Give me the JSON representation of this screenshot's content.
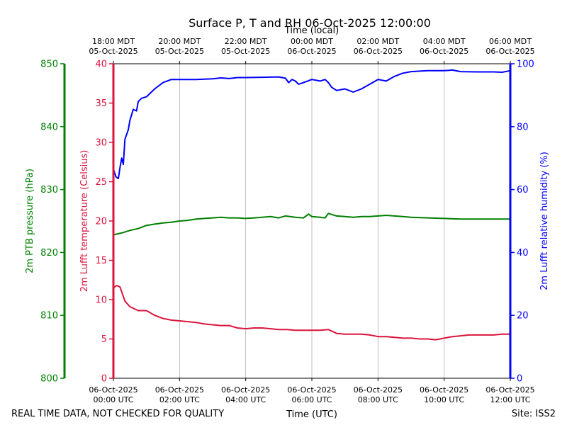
{
  "chart_data": {
    "type": "line",
    "title": "Surface P, T and RH 06-Oct-2025 12:00:00",
    "top_axis_title": "Time (local)",
    "xlabel": "Time (UTC)",
    "footer_left": "REAL TIME DATA, NOT CHECKED FOR QUALITY",
    "footer_right": "Site: ISS2",
    "x_range_hours": [
      0,
      12
    ],
    "x_ticks_utc": [
      {
        "h": 0,
        "l1": "06-Oct-2025",
        "l2": "00:00 UTC"
      },
      {
        "h": 2,
        "l1": "06-Oct-2025",
        "l2": "02:00 UTC"
      },
      {
        "h": 4,
        "l1": "06-Oct-2025",
        "l2": "04:00 UTC"
      },
      {
        "h": 6,
        "l1": "06-Oct-2025",
        "l2": "06:00 UTC"
      },
      {
        "h": 8,
        "l1": "06-Oct-2025",
        "l2": "08:00 UTC"
      },
      {
        "h": 10,
        "l1": "06-Oct-2025",
        "l2": "10:00 UTC"
      },
      {
        "h": 12,
        "l1": "06-Oct-2025",
        "l2": "12:00 UTC"
      }
    ],
    "x_ticks_local": [
      {
        "h": 0,
        "l1": "18:00 MDT",
        "l2": "05-Oct-2025"
      },
      {
        "h": 2,
        "l1": "20:00 MDT",
        "l2": "05-Oct-2025"
      },
      {
        "h": 4,
        "l1": "22:00 MDT",
        "l2": "05-Oct-2025"
      },
      {
        "h": 6,
        "l1": "00:00 MDT",
        "l2": "06-Oct-2025"
      },
      {
        "h": 8,
        "l1": "02:00 MDT",
        "l2": "06-Oct-2025"
      },
      {
        "h": 10,
        "l1": "04:00 MDT",
        "l2": "06-Oct-2025"
      },
      {
        "h": 12,
        "l1": "06:00 MDT",
        "l2": "06-Oct-2025"
      }
    ],
    "axes": {
      "pressure": {
        "label": "2m PTB pressure (hPa)",
        "ylim": [
          800,
          850
        ],
        "ticks": [
          800,
          810,
          820,
          830,
          840,
          850
        ],
        "color": "#008000"
      },
      "temperature": {
        "label": "2m Lufft temperature (Celsius)",
        "ylim": [
          0,
          40
        ],
        "ticks": [
          0,
          5,
          10,
          15,
          20,
          25,
          30,
          35,
          40
        ],
        "color": "#dc143c"
      },
      "humidity": {
        "label": "2m Lufft relative humidity (%)",
        "ylim": [
          0,
          100
        ],
        "ticks": [
          0,
          20,
          40,
          60,
          80,
          100
        ],
        "color": "#0000ff"
      }
    },
    "series": [
      {
        "name": "2m PTB pressure (hPa)",
        "axis": "pressure",
        "color": "#008000",
        "points": [
          [
            0,
            822.8
          ],
          [
            0.25,
            823.1
          ],
          [
            0.5,
            823.5
          ],
          [
            0.75,
            823.8
          ],
          [
            1,
            824.3
          ],
          [
            1.25,
            824.5
          ],
          [
            1.5,
            824.7
          ],
          [
            1.75,
            824.8
          ],
          [
            2,
            825.0
          ],
          [
            2.25,
            825.1
          ],
          [
            2.5,
            825.3
          ],
          [
            2.75,
            825.4
          ],
          [
            3,
            825.5
          ],
          [
            3.25,
            825.6
          ],
          [
            3.5,
            825.5
          ],
          [
            3.75,
            825.5
          ],
          [
            4,
            825.4
          ],
          [
            4.25,
            825.5
          ],
          [
            4.5,
            825.6
          ],
          [
            4.75,
            825.7
          ],
          [
            5,
            825.5
          ],
          [
            5.2,
            825.8
          ],
          [
            5.5,
            825.6
          ],
          [
            5.75,
            825.5
          ],
          [
            5.9,
            826.1
          ],
          [
            6,
            825.7
          ],
          [
            6.25,
            825.6
          ],
          [
            6.4,
            825.5
          ],
          [
            6.5,
            826.2
          ],
          [
            6.75,
            825.8
          ],
          [
            7,
            825.7
          ],
          [
            7.25,
            825.6
          ],
          [
            7.5,
            825.7
          ],
          [
            7.75,
            825.7
          ],
          [
            8,
            825.8
          ],
          [
            8.25,
            825.9
          ],
          [
            8.5,
            825.8
          ],
          [
            8.75,
            825.7
          ],
          [
            9,
            825.6
          ],
          [
            9.5,
            825.5
          ],
          [
            10,
            825.4
          ],
          [
            10.5,
            825.3
          ],
          [
            11,
            825.3
          ],
          [
            11.5,
            825.3
          ],
          [
            12,
            825.3
          ]
        ]
      },
      {
        "name": "2m Lufft temperature (Celsius)",
        "axis": "temperature",
        "color": "#dc143c",
        "points": [
          [
            0,
            11.5
          ],
          [
            0.1,
            11.8
          ],
          [
            0.2,
            11.6
          ],
          [
            0.25,
            11.0
          ],
          [
            0.35,
            9.8
          ],
          [
            0.5,
            9.1
          ],
          [
            0.75,
            8.6
          ],
          [
            1,
            8.6
          ],
          [
            1.25,
            8.0
          ],
          [
            1.5,
            7.6
          ],
          [
            1.75,
            7.4
          ],
          [
            2,
            7.3
          ],
          [
            2.25,
            7.2
          ],
          [
            2.5,
            7.1
          ],
          [
            2.75,
            6.9
          ],
          [
            3,
            6.8
          ],
          [
            3.25,
            6.7
          ],
          [
            3.5,
            6.7
          ],
          [
            3.75,
            6.4
          ],
          [
            4,
            6.3
          ],
          [
            4.25,
            6.4
          ],
          [
            4.5,
            6.4
          ],
          [
            4.75,
            6.3
          ],
          [
            5,
            6.2
          ],
          [
            5.25,
            6.2
          ],
          [
            5.5,
            6.1
          ],
          [
            5.75,
            6.1
          ],
          [
            6,
            6.1
          ],
          [
            6.25,
            6.1
          ],
          [
            6.5,
            6.2
          ],
          [
            6.75,
            5.7
          ],
          [
            7,
            5.6
          ],
          [
            7.25,
            5.6
          ],
          [
            7.5,
            5.6
          ],
          [
            7.75,
            5.5
          ],
          [
            8,
            5.3
          ],
          [
            8.25,
            5.3
          ],
          [
            8.5,
            5.2
          ],
          [
            8.75,
            5.1
          ],
          [
            9,
            5.1
          ],
          [
            9.25,
            5.0
          ],
          [
            9.5,
            5.0
          ],
          [
            9.75,
            4.9
          ],
          [
            10,
            5.1
          ],
          [
            10.25,
            5.3
          ],
          [
            10.5,
            5.4
          ],
          [
            10.75,
            5.5
          ],
          [
            11,
            5.5
          ],
          [
            11.25,
            5.5
          ],
          [
            11.5,
            5.5
          ],
          [
            11.75,
            5.6
          ],
          [
            12,
            5.6
          ]
        ]
      },
      {
        "name": "2m Lufft relative humidity (%)",
        "axis": "humidity",
        "color": "#0000ff",
        "points": [
          [
            0,
            66.5
          ],
          [
            0.08,
            64.0
          ],
          [
            0.15,
            63.5
          ],
          [
            0.2,
            67.0
          ],
          [
            0.25,
            70.0
          ],
          [
            0.3,
            68.0
          ],
          [
            0.35,
            76.0
          ],
          [
            0.45,
            79.0
          ],
          [
            0.5,
            82.0
          ],
          [
            0.6,
            85.5
          ],
          [
            0.7,
            85.0
          ],
          [
            0.75,
            88.0
          ],
          [
            0.85,
            89.0
          ],
          [
            1,
            89.5
          ],
          [
            1.25,
            92.0
          ],
          [
            1.5,
            94.0
          ],
          [
            1.75,
            95.0
          ],
          [
            2,
            95.0
          ],
          [
            2.5,
            95.0
          ],
          [
            3,
            95.2
          ],
          [
            3.25,
            95.5
          ],
          [
            3.5,
            95.3
          ],
          [
            3.75,
            95.6
          ],
          [
            4,
            95.6
          ],
          [
            4.5,
            95.7
          ],
          [
            5,
            95.8
          ],
          [
            5.2,
            95.4
          ],
          [
            5.3,
            94.0
          ],
          [
            5.4,
            95.0
          ],
          [
            5.5,
            94.5
          ],
          [
            5.6,
            93.5
          ],
          [
            5.75,
            94.0
          ],
          [
            6,
            95.0
          ],
          [
            6.25,
            94.5
          ],
          [
            6.4,
            95.0
          ],
          [
            6.5,
            94.0
          ],
          [
            6.6,
            92.5
          ],
          [
            6.75,
            91.5
          ],
          [
            7,
            92.0
          ],
          [
            7.25,
            91.0
          ],
          [
            7.5,
            92.0
          ],
          [
            7.75,
            93.5
          ],
          [
            8,
            95.0
          ],
          [
            8.25,
            94.5
          ],
          [
            8.5,
            96.0
          ],
          [
            8.75,
            97.0
          ],
          [
            9,
            97.5
          ],
          [
            9.5,
            97.8
          ],
          [
            10,
            97.8
          ],
          [
            10.25,
            98.0
          ],
          [
            10.5,
            97.5
          ],
          [
            11,
            97.4
          ],
          [
            11.5,
            97.4
          ],
          [
            11.75,
            97.3
          ],
          [
            12,
            97.8
          ]
        ]
      }
    ]
  }
}
